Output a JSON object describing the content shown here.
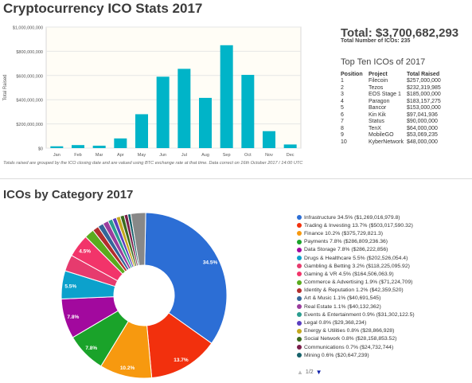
{
  "page_title": "Cryptocurrency ICO Stats 2017",
  "summary": {
    "total": "Total: $3,700,682,293",
    "count": "Total Number of ICOs: 235"
  },
  "top_ten": {
    "title": "Top Ten ICOs of 2017",
    "headers": [
      "Position",
      "Project",
      "Total Raised"
    ],
    "rows": [
      [
        "1",
        "Filecoin",
        "$257,000,000"
      ],
      [
        "2",
        "Tezos",
        "$232,319,985"
      ],
      [
        "3",
        "EOS Stage 1",
        "$185,000,000"
      ],
      [
        "4",
        "Paragon",
        "$183,157,275"
      ],
      [
        "5",
        "Bancor",
        "$153,000,000"
      ],
      [
        "6",
        "Kin Kik",
        "$97,041,936"
      ],
      [
        "7",
        "Status",
        "$90,000,000"
      ],
      [
        "8",
        "TenX",
        "$64,000,000"
      ],
      [
        "9",
        "MobileGO",
        "$53,069,235"
      ],
      [
        "10",
        "KyberNetwork",
        "$48,000,000"
      ]
    ]
  },
  "footnote": "Totals raised are grouped by the ICO closing date and are valued using BTC exchange rate at that time. Data correct on 16th October 2017 / 14:00 UTC",
  "category_title": "ICOs by Category 2017",
  "pager": {
    "page": "1/2",
    "up_glyph": "▲",
    "down_glyph": "▼"
  },
  "chart_data": [
    {
      "type": "bar",
      "ylabel": "Total Raised",
      "xlabel": "",
      "ylim": [
        0,
        1000000000
      ],
      "yticks": [
        0,
        200000000,
        400000000,
        600000000,
        800000000,
        1000000000
      ],
      "ytick_labels": [
        "$0",
        "$200,000,000",
        "$400,000,000",
        "$600,000,000",
        "$800,000,000",
        "$1,000,000,000"
      ],
      "categories": [
        "Jan",
        "Feb",
        "Mar",
        "Apr",
        "May",
        "Jun",
        "Jul",
        "Aug",
        "Sep",
        "Oct",
        "Nov",
        "Dec"
      ],
      "values": [
        15000000,
        25000000,
        20000000,
        80000000,
        280000000,
        590000000,
        655000000,
        415000000,
        850000000,
        605000000,
        140000000,
        30000000
      ],
      "color": "#00b4c8",
      "grid": true
    },
    {
      "type": "pie",
      "style": "donut",
      "series": [
        {
          "label": "Infrastructure 34.5% ($1,269,016,979.8)",
          "value": 34.5,
          "slice_label": "34.5%",
          "color": "#2c6ed5"
        },
        {
          "label": "Trading & Investing 13.7% ($503,017,590.32)",
          "value": 13.7,
          "slice_label": "13.7%",
          "color": "#f2300d"
        },
        {
          "label": "Finance 10.2% ($375,729,821.3)",
          "value": 10.2,
          "slice_label": "10.2%",
          "color": "#f7990f"
        },
        {
          "label": "Payments 7.8% ($286,809,236.36)",
          "value": 7.8,
          "slice_label": "7.8%",
          "color": "#1aa32a"
        },
        {
          "label": "Data Storage 7.8% ($286,222,856)",
          "value": 7.8,
          "slice_label": "7.8%",
          "color": "#a2099e"
        },
        {
          "label": "Drugs & Healthcare 5.5% ($202,526,054.4)",
          "value": 5.5,
          "slice_label": "5.5%",
          "color": "#0ca1cc"
        },
        {
          "label": "Gambling & Betting 3.2% ($118,225,095.92)",
          "value": 3.2,
          "slice_label": "",
          "color": "#e63b6e"
        },
        {
          "label": "Gaming & VR 4.5% ($164,506,063.9)",
          "value": 4.5,
          "slice_label": "4.5%",
          "color": "#f2346a"
        },
        {
          "label": "Commerce & Advertising 1.9% ($71,224,709)",
          "value": 1.9,
          "slice_label": "",
          "color": "#5aab1e"
        },
        {
          "label": "Identity & Reputation 1.2% ($42,359,520)",
          "value": 1.2,
          "slice_label": "",
          "color": "#b22e2e"
        },
        {
          "label": "Art & Music 1.1% ($40,691,545)",
          "value": 1.1,
          "slice_label": "",
          "color": "#336699"
        },
        {
          "label": "Real Estate 1.1% ($40,132,362)",
          "value": 1.1,
          "slice_label": "",
          "color": "#9b3d9d"
        },
        {
          "label": "Events & Entertainment 0.9% ($31,302,122.5)",
          "value": 0.9,
          "slice_label": "",
          "color": "#2a9d8f"
        },
        {
          "label": "Legal 0.8% ($29,368,234)",
          "value": 0.8,
          "slice_label": "",
          "color": "#5a3fbf"
        },
        {
          "label": "Energy & Utilities 0.8% ($28,866,928)",
          "value": 0.8,
          "slice_label": "",
          "color": "#c5a81e"
        },
        {
          "label": "Social Network 0.8% ($28,158,853.52)",
          "value": 0.8,
          "slice_label": "",
          "color": "#3a6a1e"
        },
        {
          "label": "Communications 0.7% ($24,732,744)",
          "value": 0.7,
          "slice_label": "",
          "color": "#7a1e4a"
        },
        {
          "label": "Mining 0.6% ($20,647,239)",
          "value": 0.6,
          "slice_label": "",
          "color": "#16616a"
        },
        {
          "label": "",
          "value": 2.9,
          "slice_label": "",
          "color": "#888888"
        }
      ]
    }
  ]
}
